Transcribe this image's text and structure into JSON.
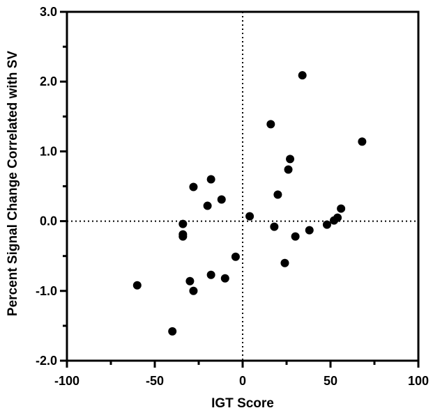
{
  "chart_data": {
    "type": "scatter",
    "title": "",
    "xlabel": "IGT Score",
    "ylabel": "Percent Signal Change Correlated with SV",
    "xlim": [
      -100,
      100
    ],
    "ylim": [
      -2.0,
      3.0
    ],
    "x_ticks": [
      -100,
      -50,
      0,
      50,
      100
    ],
    "x_tick_labels": [
      "-100",
      "-50",
      "0",
      "50",
      "100"
    ],
    "y_ticks": [
      -2.0,
      -1.0,
      0.0,
      1.0,
      2.0,
      3.0
    ],
    "y_tick_labels": [
      "-2.0",
      "-1.0",
      "0.0",
      "1.0",
      "2.0",
      "3.0"
    ],
    "reference_lines": {
      "x": 0,
      "y": 0,
      "style": "dotted"
    },
    "grid": false,
    "marker_color": "#000000",
    "points": [
      {
        "x": 34,
        "y": 2.09
      },
      {
        "x": 16,
        "y": 1.39
      },
      {
        "x": 68,
        "y": 1.14
      },
      {
        "x": 27,
        "y": 0.89
      },
      {
        "x": 26,
        "y": 0.74
      },
      {
        "x": -18,
        "y": 0.6
      },
      {
        "x": -28,
        "y": 0.49
      },
      {
        "x": 20,
        "y": 0.38
      },
      {
        "x": -12,
        "y": 0.31
      },
      {
        "x": -20,
        "y": 0.22
      },
      {
        "x": 56,
        "y": 0.18
      },
      {
        "x": 4,
        "y": 0.07
      },
      {
        "x": 54,
        "y": 0.05
      },
      {
        "x": 52,
        "y": 0.01
      },
      {
        "x": -34,
        "y": -0.04
      },
      {
        "x": 48,
        "y": -0.05
      },
      {
        "x": 18,
        "y": -0.08
      },
      {
        "x": 38,
        "y": -0.13
      },
      {
        "x": -34,
        "y": -0.19
      },
      {
        "x": -34,
        "y": -0.22
      },
      {
        "x": 30,
        "y": -0.22
      },
      {
        "x": -4,
        "y": -0.51
      },
      {
        "x": 24,
        "y": -0.6
      },
      {
        "x": -18,
        "y": -0.77
      },
      {
        "x": -10,
        "y": -0.82
      },
      {
        "x": -30,
        "y": -0.86
      },
      {
        "x": -60,
        "y": -0.92
      },
      {
        "x": -28,
        "y": -1.0
      },
      {
        "x": -40,
        "y": -1.58
      }
    ]
  }
}
